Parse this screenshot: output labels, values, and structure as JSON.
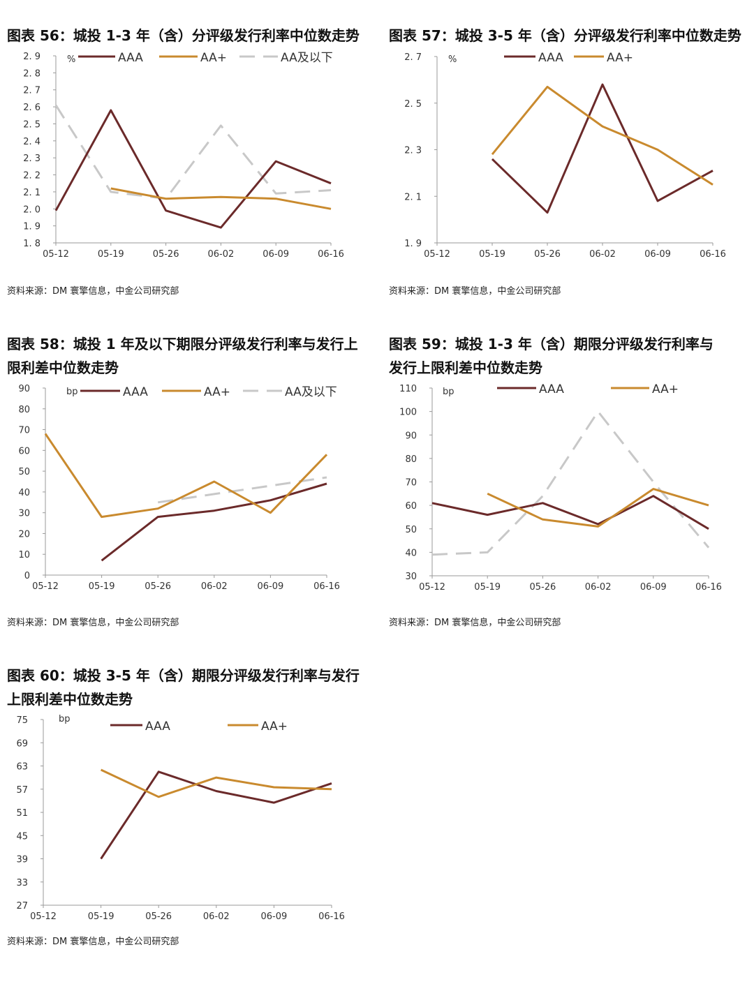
{
  "colors": {
    "AAA": "#6B2A2A",
    "AA+": "#C98A2E",
    "AA_below": "#C8C8C8"
  },
  "chart_data": [
    {
      "id": "56",
      "type": "line",
      "title": "图表 56：城投 1-3 年（含）分评级发行利率中位数走势",
      "unit": "%",
      "source": "资料来源：DM 寰擎信息，中金公司研究部",
      "categories": [
        "05-12",
        "05-19",
        "05-26",
        "06-02",
        "06-09",
        "06-16"
      ],
      "ylim": [
        1.8,
        2.9
      ],
      "yticks": [
        1.8,
        1.9,
        2.0,
        2.1,
        2.2,
        2.3,
        2.4,
        2.5,
        2.6,
        2.7,
        2.8,
        2.9
      ],
      "ytick_labels": [
        "1. 8",
        "1. 9",
        "2. 0",
        "2. 1",
        "2. 2",
        "2. 3",
        "2. 4",
        "2. 5",
        "2. 6",
        "2. 7",
        "2. 8",
        "2. 9"
      ],
      "series": [
        {
          "name": "AAA",
          "color": "#6B2A2A",
          "dashed": false,
          "values": [
            1.99,
            2.58,
            1.99,
            1.89,
            2.28,
            2.15
          ]
        },
        {
          "name": "AA+",
          "color": "#C98A2E",
          "dashed": false,
          "values": [
            null,
            2.12,
            2.06,
            2.07,
            2.06,
            2.0
          ]
        },
        {
          "name": "AA及以下",
          "color": "#C8C8C8",
          "dashed": true,
          "values": [
            2.61,
            2.1,
            2.06,
            2.49,
            2.09,
            2.11
          ]
        }
      ]
    },
    {
      "id": "57",
      "type": "line",
      "title": "图表 57：城投 3-5 年（含）分评级发行利率中位数走势",
      "unit": "%",
      "source": "资料来源：DM 寰擎信息，中金公司研究部",
      "categories": [
        "05-12",
        "05-19",
        "05-26",
        "06-02",
        "06-09",
        "06-16"
      ],
      "ylim": [
        1.9,
        2.7
      ],
      "yticks": [
        1.9,
        2.1,
        2.3,
        2.5,
        2.7
      ],
      "ytick_labels": [
        "1. 9",
        "2. 1",
        "2. 3",
        "2. 5",
        "2. 7"
      ],
      "series": [
        {
          "name": "AAA",
          "color": "#6B2A2A",
          "dashed": false,
          "values": [
            null,
            2.26,
            2.03,
            2.58,
            2.08,
            2.21
          ]
        },
        {
          "name": "AA+",
          "color": "#C98A2E",
          "dashed": false,
          "values": [
            null,
            2.28,
            2.57,
            2.4,
            2.3,
            2.15
          ]
        }
      ]
    },
    {
      "id": "58",
      "type": "line",
      "title": "图表 58：城投 1 年及以下期限分评级发行利率与发行上",
      "title2": "限利差中位数走势",
      "unit": "bp",
      "source": "资料来源：DM 寰擎信息，中金公司研究部",
      "categories": [
        "05-12",
        "05-19",
        "05-26",
        "06-02",
        "06-09",
        "06-16"
      ],
      "ylim": [
        0,
        90
      ],
      "yticks": [
        0,
        10,
        20,
        30,
        40,
        50,
        60,
        70,
        80,
        90
      ],
      "ytick_labels": [
        "0",
        "10",
        "20",
        "30",
        "40",
        "50",
        "60",
        "70",
        "80",
        "90"
      ],
      "series": [
        {
          "name": "AAA",
          "color": "#6B2A2A",
          "dashed": false,
          "values": [
            null,
            7,
            28,
            31,
            36,
            44
          ]
        },
        {
          "name": "AA+",
          "color": "#C98A2E",
          "dashed": false,
          "values": [
            68,
            28,
            32,
            45,
            30,
            58
          ]
        },
        {
          "name": "AA及以下",
          "color": "#C8C8C8",
          "dashed": true,
          "values": [
            null,
            null,
            35,
            39,
            43,
            47
          ]
        }
      ]
    },
    {
      "id": "59",
      "type": "line",
      "title": "图表 59：城投 1-3 年（含）期限分评级发行利率与",
      "title2": "发行上限利差中位数走势",
      "unit": "bp",
      "source": "资料来源：DM 寰擎信息，中金公司研究部",
      "categories": [
        "05-12",
        "05-19",
        "05-26",
        "06-02",
        "06-09",
        "06-16"
      ],
      "ylim": [
        30,
        110
      ],
      "yticks": [
        30,
        40,
        50,
        60,
        70,
        80,
        90,
        100,
        110
      ],
      "ytick_labels": [
        "30",
        "40",
        "50",
        "60",
        "70",
        "80",
        "90",
        "100",
        "110"
      ],
      "series": [
        {
          "name": "AAA",
          "color": "#6B2A2A",
          "dashed": false,
          "values": [
            61,
            56,
            61,
            52,
            64,
            50
          ]
        },
        {
          "name": "AA+",
          "color": "#C98A2E",
          "dashed": false,
          "values": [
            null,
            65,
            54,
            51,
            67,
            60
          ]
        },
        {
          "color": "#C8C8C8",
          "dashed": true,
          "values": [
            39,
            40,
            64,
            100,
            70,
            42
          ]
        }
      ]
    },
    {
      "id": "60",
      "type": "line",
      "title": "图表 60：城投 3-5 年（含）期限分评级发行利率与发行",
      "title2": "上限利差中位数走势",
      "unit": "bp",
      "source": "资料来源：DM 寰擎信息，中金公司研究部",
      "categories": [
        "05-12",
        "05-19",
        "05-26",
        "06-02",
        "06-09",
        "06-16"
      ],
      "ylim": [
        27,
        75
      ],
      "yticks": [
        27,
        33,
        39,
        45,
        51,
        57,
        63,
        69,
        75
      ],
      "ytick_labels": [
        "27",
        "33",
        "39",
        "45",
        "51",
        "57",
        "63",
        "69",
        "75"
      ],
      "series": [
        {
          "name": "AAA",
          "color": "#6B2A2A",
          "dashed": false,
          "values": [
            null,
            39,
            61.5,
            56.5,
            53.5,
            58.5
          ]
        },
        {
          "name": "AA+",
          "color": "#C98A2E",
          "dashed": false,
          "values": [
            null,
            62,
            55,
            60,
            57.5,
            57
          ]
        }
      ]
    }
  ]
}
